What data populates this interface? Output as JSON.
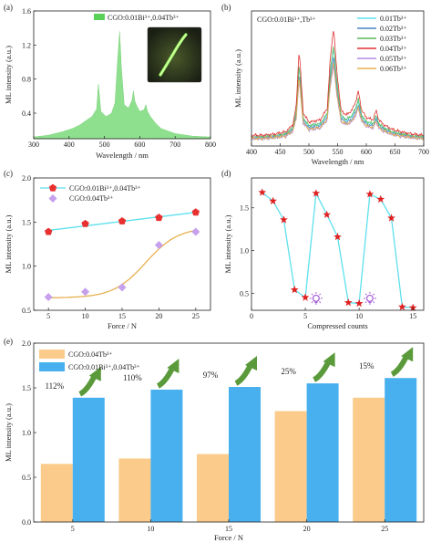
{
  "panels": {
    "a": {
      "label": "(a)"
    },
    "b": {
      "label": "(b)"
    },
    "c": {
      "label": "(c)"
    },
    "d": {
      "label": "(d)"
    },
    "e": {
      "label": "(e)"
    }
  },
  "colors": {
    "green_fill": "#8ee08e",
    "green_legend": "#5ad25a",
    "cyan": "#5ee0ee",
    "blue": "#4a84c8",
    "green": "#5ab85a",
    "red": "#e03030",
    "violet": "#b08ae0",
    "orange": "#e8b050",
    "pentagon": "#e83030",
    "diamond": "#c6a0ec",
    "star": "#e02020",
    "bar_orange": "#fbcb8c",
    "bar_blue": "#48b0ee",
    "arrow_green": "#5a9a3a",
    "pct_text": "#2f86c8",
    "bulb": "#9a4ad0"
  },
  "chart_data": [
    {
      "id": "a",
      "type": "area",
      "xlabel": "Wavelength / nm",
      "ylabel": "ML intensity (a.u.)",
      "xlim": [
        300,
        800
      ],
      "ylim": [
        0.1,
        1.6
      ],
      "xticks": [
        "300",
        "400",
        "500",
        "600",
        "700",
        "800"
      ],
      "yticks": [
        "0.4",
        "0.8",
        "1.2",
        "1.6"
      ],
      "legend": "CGO:0.01Bi³⁺,0.04Tb³⁺",
      "series": [
        {
          "name": "CGO:0.01Bi³⁺,0.04Tb³⁺",
          "x": [
            300,
            340,
            380,
            410,
            430,
            450,
            465,
            478,
            483,
            490,
            505,
            520,
            530,
            537,
            543,
            548,
            556,
            568,
            578,
            582,
            586,
            592,
            600,
            612,
            617,
            622,
            630,
            645,
            660,
            700,
            750,
            800
          ],
          "y": [
            0.12,
            0.14,
            0.18,
            0.22,
            0.26,
            0.32,
            0.36,
            0.45,
            0.74,
            0.42,
            0.36,
            0.4,
            0.52,
            1.01,
            1.36,
            0.94,
            0.5,
            0.46,
            0.55,
            0.66,
            0.54,
            0.48,
            0.42,
            0.44,
            0.5,
            0.42,
            0.36,
            0.28,
            0.22,
            0.16,
            0.13,
            0.12
          ]
        }
      ]
    },
    {
      "id": "b",
      "type": "line",
      "xlabel": "Wavelength / nm",
      "ylabel": "ML intensity (a.u.)",
      "xlim": [
        400,
        700
      ],
      "ylim": [
        0,
        1.6
      ],
      "xticks": [
        "400",
        "450",
        "500",
        "550",
        "600",
        "650",
        "700"
      ],
      "title": "CGO:0.01Bi³⁺,Tb³⁺",
      "peaks": {
        "x": [
          400,
          420,
          440,
          460,
          472,
          478,
          483,
          490,
          500,
          520,
          532,
          537,
          543,
          548,
          556,
          565,
          575,
          582,
          586,
          592,
          600,
          612,
          617,
          622,
          630,
          645,
          660,
          680,
          700
        ],
        "shape": [
          0.09,
          0.09,
          0.1,
          0.12,
          0.18,
          0.34,
          0.82,
          0.28,
          0.2,
          0.22,
          0.32,
          0.72,
          1.0,
          0.66,
          0.3,
          0.26,
          0.3,
          0.38,
          0.46,
          0.3,
          0.24,
          0.22,
          0.3,
          0.22,
          0.18,
          0.14,
          0.12,
          0.1,
          0.09
        ]
      },
      "series": [
        {
          "name": "0.01Tb³⁺",
          "peak": 1.16
        },
        {
          "name": "0.02Tb³⁺",
          "peak": 1.07
        },
        {
          "name": "0.03Tb³⁺",
          "peak": 1.21
        },
        {
          "name": "0.04Tb³⁺",
          "peak": 1.41
        },
        {
          "name": "0.05Tb³⁺",
          "peak": 0.96
        },
        {
          "name": "0.06Tb³⁺",
          "peak": 1.0
        }
      ]
    },
    {
      "id": "c",
      "type": "scatter",
      "xlabel": "Force / N",
      "ylabel": "ML intensity (a.u.)",
      "xlim": [
        3,
        27
      ],
      "ylim": [
        0.5,
        2.0
      ],
      "xticks": [
        "5",
        "10",
        "15",
        "20",
        "25"
      ],
      "yticks": [
        "0.5",
        "1.0",
        "1.5",
        "2.0"
      ],
      "x": [
        5,
        10,
        15,
        20,
        25
      ],
      "series": [
        {
          "name": "CGO:0.01Bi³⁺,0.04Tb³⁺",
          "values": [
            1.39,
            1.48,
            1.51,
            1.55,
            1.61
          ],
          "fit": "linear"
        },
        {
          "name": "CGO:0.04Tb³⁺",
          "values": [
            0.65,
            0.71,
            0.76,
            1.24,
            1.39
          ],
          "fit": "sigmoid"
        }
      ]
    },
    {
      "id": "d",
      "type": "line",
      "xlabel": "Compressed counts",
      "ylabel": "ML intensity (a.u.)",
      "xlim": [
        0,
        16
      ],
      "ylim": [
        0.3,
        1.85
      ],
      "xticks": [
        "0",
        "5",
        "10",
        "15"
      ],
      "yticks": [
        "0.5",
        "1.0",
        "1.5"
      ],
      "x": [
        1,
        2,
        3,
        4,
        5,
        6,
        7,
        8,
        9,
        10,
        11,
        12,
        13,
        14,
        15
      ],
      "values": [
        1.68,
        1.58,
        1.36,
        0.54,
        0.45,
        1.67,
        1.42,
        1.16,
        0.39,
        0.38,
        1.66,
        1.6,
        1.38,
        0.34,
        0.33
      ],
      "bulbs_at_x": [
        6,
        11
      ]
    },
    {
      "id": "e",
      "type": "bar",
      "xlabel": "Force / N",
      "ylabel": "ML intensity (a.u.)",
      "ylim": [
        0,
        2.0
      ],
      "categories": [
        "5",
        "10",
        "15",
        "20",
        "25"
      ],
      "yticks": [
        "0.0",
        "0.5",
        "1.0",
        "1.5",
        "2.0"
      ],
      "series": [
        {
          "name": "CGO:0.04Tb³⁺",
          "values": [
            0.65,
            0.71,
            0.76,
            1.24,
            1.39
          ]
        },
        {
          "name": "CGO:0.01Bi³⁺,0.04Tb³⁺",
          "values": [
            1.39,
            1.48,
            1.51,
            1.55,
            1.61
          ]
        }
      ],
      "annotations": [
        "112%",
        "110%",
        "97%",
        "25%",
        "15%"
      ]
    }
  ]
}
